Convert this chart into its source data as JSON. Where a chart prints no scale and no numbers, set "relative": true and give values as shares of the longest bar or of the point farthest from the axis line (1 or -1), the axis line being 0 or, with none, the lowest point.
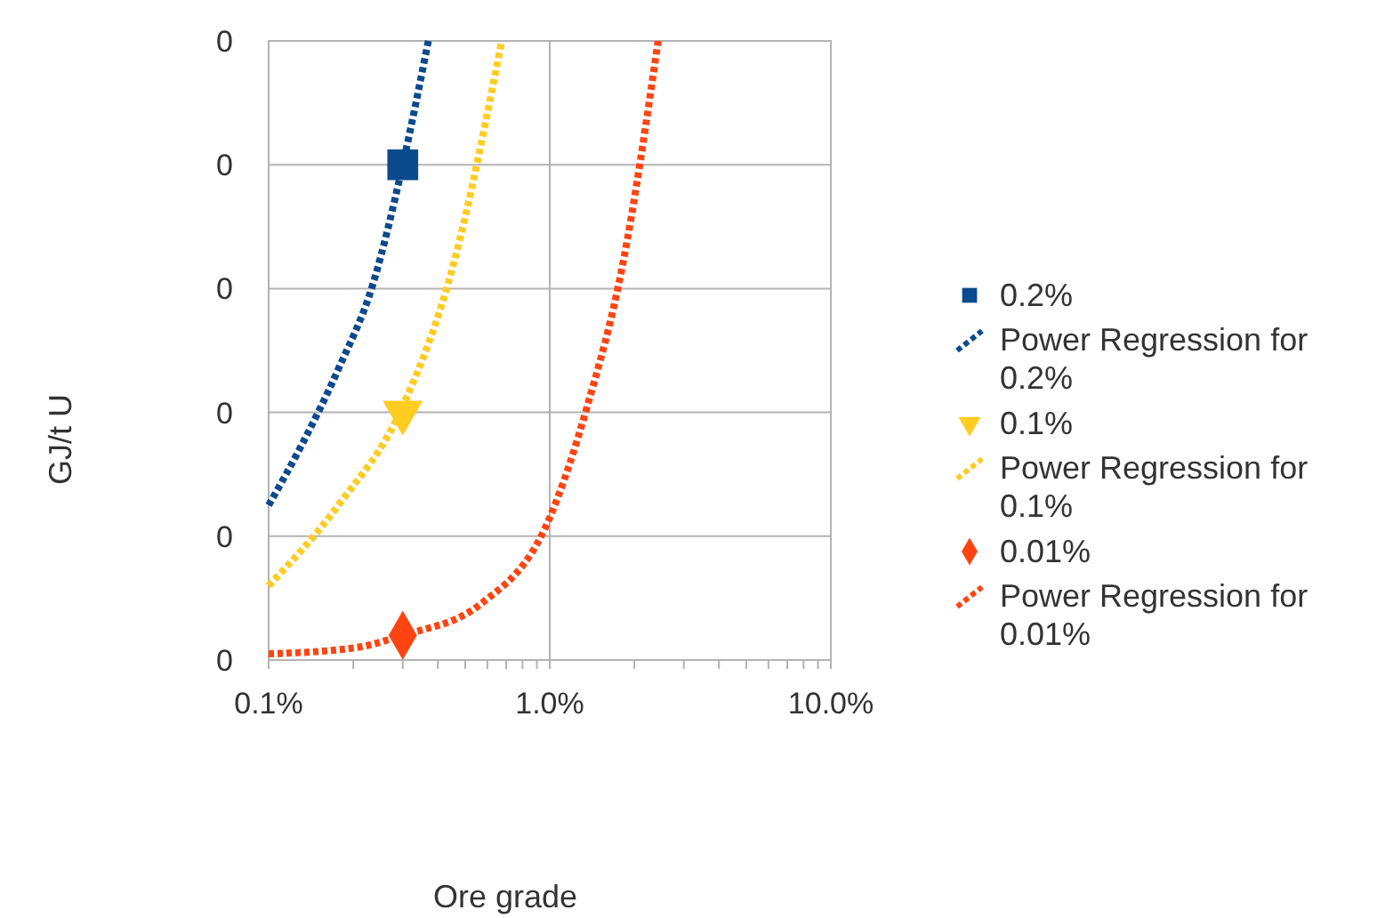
{
  "chart_data": {
    "type": "scatter",
    "xlabel": "Ore grade",
    "ylabel": "GJ/t U",
    "log": "x",
    "grid": true,
    "legend": "right",
    "relative": true,
    "annotations": [
      "0",
      "0",
      "0",
      "0",
      "0",
      "0"
    ],
    "xlim": [
      0.1,
      10
    ],
    "xticks": [
      {
        "value": 0.1,
        "label": "0.1%"
      },
      {
        "value": 0.2,
        "label": null
      },
      {
        "value": 0.3,
        "label": null
      },
      {
        "value": 0.4,
        "label": null
      },
      {
        "value": 0.5,
        "label": null
      },
      {
        "value": 0.6,
        "label": null
      },
      {
        "value": 0.7,
        "label": null
      },
      {
        "value": 0.8,
        "label": null
      },
      {
        "value": 0.9,
        "label": null
      },
      {
        "value": 1,
        "label": "1.0%"
      },
      {
        "value": 2,
        "label": null
      },
      {
        "value": 3,
        "label": null
      },
      {
        "value": 4,
        "label": null
      },
      {
        "value": 5,
        "label": null
      },
      {
        "value": 6,
        "label": null
      },
      {
        "value": 7,
        "label": null
      },
      {
        "value": 8,
        "label": null
      },
      {
        "value": 9,
        "label": null
      },
      {
        "value": 10,
        "label": "10.0%"
      }
    ],
    "series": [
      {
        "name": "0.2%",
        "marker": "square",
        "color": "#0b4a8c",
        "x": [
          0.3
        ],
        "values": [
          0.8
        ]
      },
      {
        "name": "Power Regression for 0.2%",
        "type": "line",
        "line_style": "dotted",
        "color": "#0b4a8c",
        "x": [
          0.1,
          0.132,
          0.177,
          0.236,
          0.3,
          0.37
        ],
        "values": [
          0.25,
          0.35,
          0.47,
          0.61,
          0.8,
          1.0
        ]
      },
      {
        "name": "0.1%",
        "marker": "triangle",
        "color": "#ffcc22",
        "x": [
          0.3
        ],
        "values": [
          0.4
        ]
      },
      {
        "name": "Power Regression for 0.1%",
        "type": "line",
        "line_style": "dotted",
        "color": "#ffcc22",
        "x": [
          0.1,
          0.177,
          0.3,
          0.455,
          0.675
        ],
        "values": [
          0.12,
          0.25,
          0.41,
          0.64,
          1.0
        ]
      },
      {
        "name": "0.01%",
        "marker": "diamond",
        "color": "#ff4411",
        "x": [
          0.3
        ],
        "values": [
          0.04
        ]
      },
      {
        "name": "Power Regression for 0.01%",
        "type": "line",
        "line_style": "dotted",
        "color": "#ff4411",
        "x": [
          0.1,
          0.204,
          0.3,
          0.566,
          1.0,
          1.36,
          1.82,
          2.43
        ],
        "values": [
          0.01,
          0.02,
          0.04,
          0.09,
          0.23,
          0.41,
          0.64,
          1.0
        ]
      }
    ]
  }
}
